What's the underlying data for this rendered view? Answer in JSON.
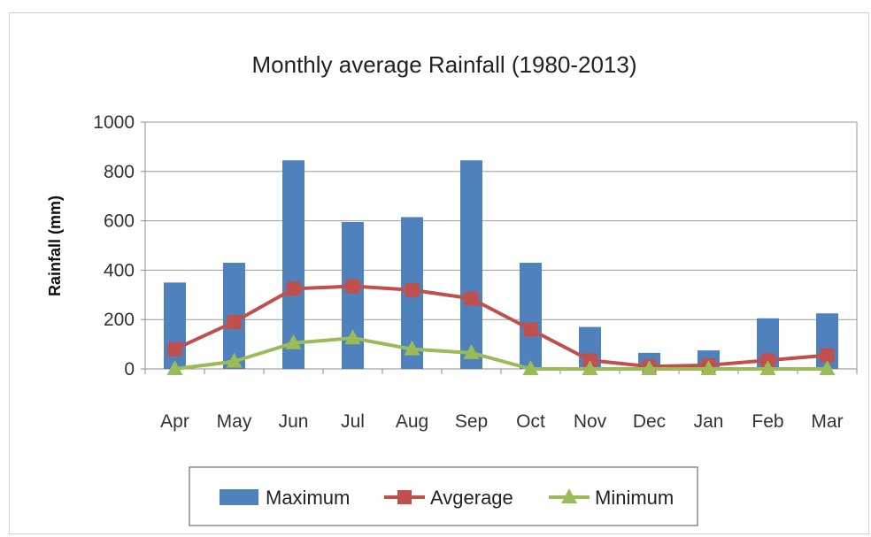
{
  "chart_data": {
    "type": "bar",
    "title": "Monthly average Rainfall (1980-2013)",
    "xlabel": "",
    "ylabel": "Rainfall (mm)",
    "ylim": [
      0,
      1000
    ],
    "yticks": [
      0,
      200,
      400,
      600,
      800,
      1000
    ],
    "grid": true,
    "legend_position": "bottom",
    "categories": [
      "Apr",
      "May",
      "Jun",
      "Jul",
      "Aug",
      "Sep",
      "Oct",
      "Nov",
      "Dec",
      "Jan",
      "Feb",
      "Mar"
    ],
    "series": [
      {
        "name": "Maximum",
        "kind": "bar",
        "color": "#4f81bd",
        "values": [
          350,
          430,
          845,
          595,
          615,
          845,
          430,
          170,
          65,
          75,
          205,
          225
        ]
      },
      {
        "name": "Avgerage",
        "kind": "line",
        "marker": "square",
        "color": "#c0504d",
        "values": [
          80,
          190,
          325,
          335,
          320,
          285,
          160,
          35,
          10,
          15,
          35,
          55
        ]
      },
      {
        "name": "Minimum",
        "kind": "line",
        "marker": "triangle",
        "color": "#9bbb59",
        "values": [
          0,
          30,
          105,
          125,
          80,
          65,
          0,
          0,
          0,
          0,
          0,
          0
        ]
      }
    ]
  }
}
